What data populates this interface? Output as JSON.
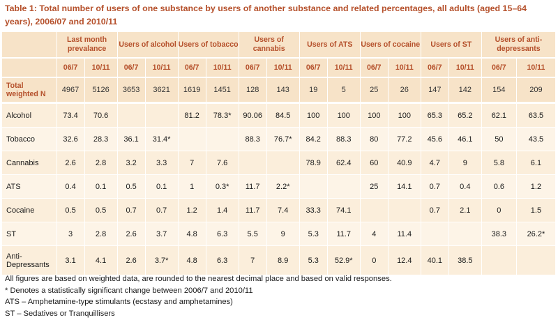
{
  "title": "Table 1: Total number of users of one substance by users of another substance and related percentages, all adults (aged 15–64 years), 2006/07 and 2010/11",
  "header": {
    "groups": [
      "Last month prevalance",
      "Users of alcohol",
      "Users of tobacco",
      "Users of cannabis",
      "Users of ATS",
      "Users of cocaine",
      "Users of ST",
      "Users of anti-depressants"
    ],
    "years": [
      [
        "06/7",
        "10/11"
      ],
      [
        "06/7",
        "10/11"
      ],
      [
        "06/7",
        "10/11"
      ],
      [
        "06/7",
        "10/11"
      ],
      [
        "06/7",
        "10/11"
      ],
      [
        "06/7",
        "10/11"
      ],
      [
        "06/7",
        "10/11"
      ],
      [
        "06/7",
        "10/11"
      ]
    ]
  },
  "totals": {
    "label": "Total weighted N",
    "values": [
      "4967",
      "5126",
      "3653",
      "3621",
      "1619",
      "1451",
      "128",
      "143",
      "19",
      "5",
      "25",
      "26",
      "147",
      "142",
      "154",
      "209"
    ]
  },
  "rows": [
    {
      "label": "Alcohol",
      "values": [
        "73.4",
        "70.6",
        "",
        "",
        "81.2",
        "78.3*",
        "90.06",
        "84.5",
        "100",
        "100",
        "100",
        "100",
        "65.3",
        "65.2",
        "62.1",
        "63.5"
      ]
    },
    {
      "label": "Tobacco",
      "values": [
        "32.6",
        "28.3",
        "36.1",
        "31.4*",
        "",
        "",
        "88.3",
        "76.7*",
        "84.2",
        "88.3",
        "80",
        "77.2",
        "45.6",
        "46.1",
        "50",
        "43.5"
      ]
    },
    {
      "label": "Cannabis",
      "values": [
        "2.6",
        "2.8",
        "3.2",
        "3.3",
        "7",
        "7.6",
        "",
        "",
        "78.9",
        "62.4",
        "60",
        "40.9",
        "4.7",
        "9",
        "5.8",
        "6.1"
      ]
    },
    {
      "label": "ATS",
      "values": [
        "0.4",
        "0.1",
        "0.5",
        "0.1",
        "1",
        "0.3*",
        "11.7",
        "2.2*",
        "",
        "",
        "25",
        "14.1",
        "0.7",
        "0.4",
        "0.6",
        "1.2"
      ]
    },
    {
      "label": "Cocaine",
      "values": [
        "0.5",
        "0.5",
        "0.7",
        "0.7",
        "1.2",
        "1.4",
        "11.7",
        "7.4",
        "33.3",
        "74.1",
        "",
        "",
        "0.7",
        "2.1",
        "0",
        "1.5"
      ]
    },
    {
      "label": "ST",
      "values": [
        "3",
        "2.8",
        "2.6",
        "3.7",
        "4.8",
        "6.3",
        "5.5",
        "9",
        "5.3",
        "11.7",
        "4",
        "11.4",
        "",
        "",
        "38.3",
        "26.2*"
      ]
    },
    {
      "label": "Anti-Depressants",
      "values": [
        "3.1",
        "4.1",
        "2.6",
        "3.7*",
        "4.8",
        "6.3",
        "7",
        "8.9",
        "5.3",
        "52.9*",
        "0",
        "12.4",
        "40.1",
        "38.5",
        "",
        ""
      ]
    }
  ],
  "notes": [
    "All figures are based on weighted data, are rounded to the nearest decimal place and based on valid responses.",
    "* Denotes a statistically significant change between 2006/7 and 2010/11",
    "ATS – Amphetamine-type stimulants (ecstasy and amphetamines)",
    "ST – Sedatives or Tranquillisers"
  ]
}
